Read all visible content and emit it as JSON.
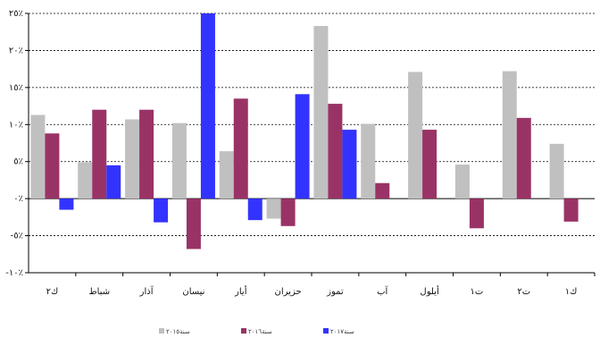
{
  "chart_data": {
    "type": "bar",
    "title": "",
    "xlabel": "",
    "ylabel": "",
    "ylim": [
      -10,
      25
    ],
    "y_ticks": [
      25,
      20,
      15,
      10,
      5,
      0,
      -5,
      -10
    ],
    "y_tick_labels": [
      "٢٥٪",
      "٢٠٪",
      "١٥٪",
      "١٠٪",
      "٥٪",
      "٠٪",
      "-٥٪",
      "-١٠٪"
    ],
    "grid": "horizontal dashed",
    "legend_position": "bottom",
    "categories": [
      "ك٢",
      "شباط",
      "آذار",
      "نيسان",
      "أيار",
      "حزيران",
      "تموز",
      "آب",
      "أيلول",
      "ت١",
      "ت٢",
      "ك١"
    ],
    "series": [
      {
        "name": "سنة٢٠١٥",
        "color": "#c0c0c0",
        "values": [
          11.3,
          4.9,
          10.7,
          10.2,
          6.4,
          -2.7,
          23.3,
          10.1,
          17.1,
          4.6,
          17.2,
          7.4
        ]
      },
      {
        "name": "سنة٢٠١٦",
        "color": "#993366",
        "values": [
          8.8,
          12.0,
          12.0,
          -6.8,
          13.5,
          -3.7,
          12.8,
          2.1,
          9.3,
          -4.0,
          10.9,
          -3.1
        ]
      },
      {
        "name": "سنة٢٠١٧",
        "color": "#3333ff",
        "values": [
          -1.5,
          4.5,
          -3.2,
          25.0,
          -2.9,
          14.1,
          9.3,
          null,
          null,
          null,
          null,
          null
        ]
      }
    ]
  }
}
